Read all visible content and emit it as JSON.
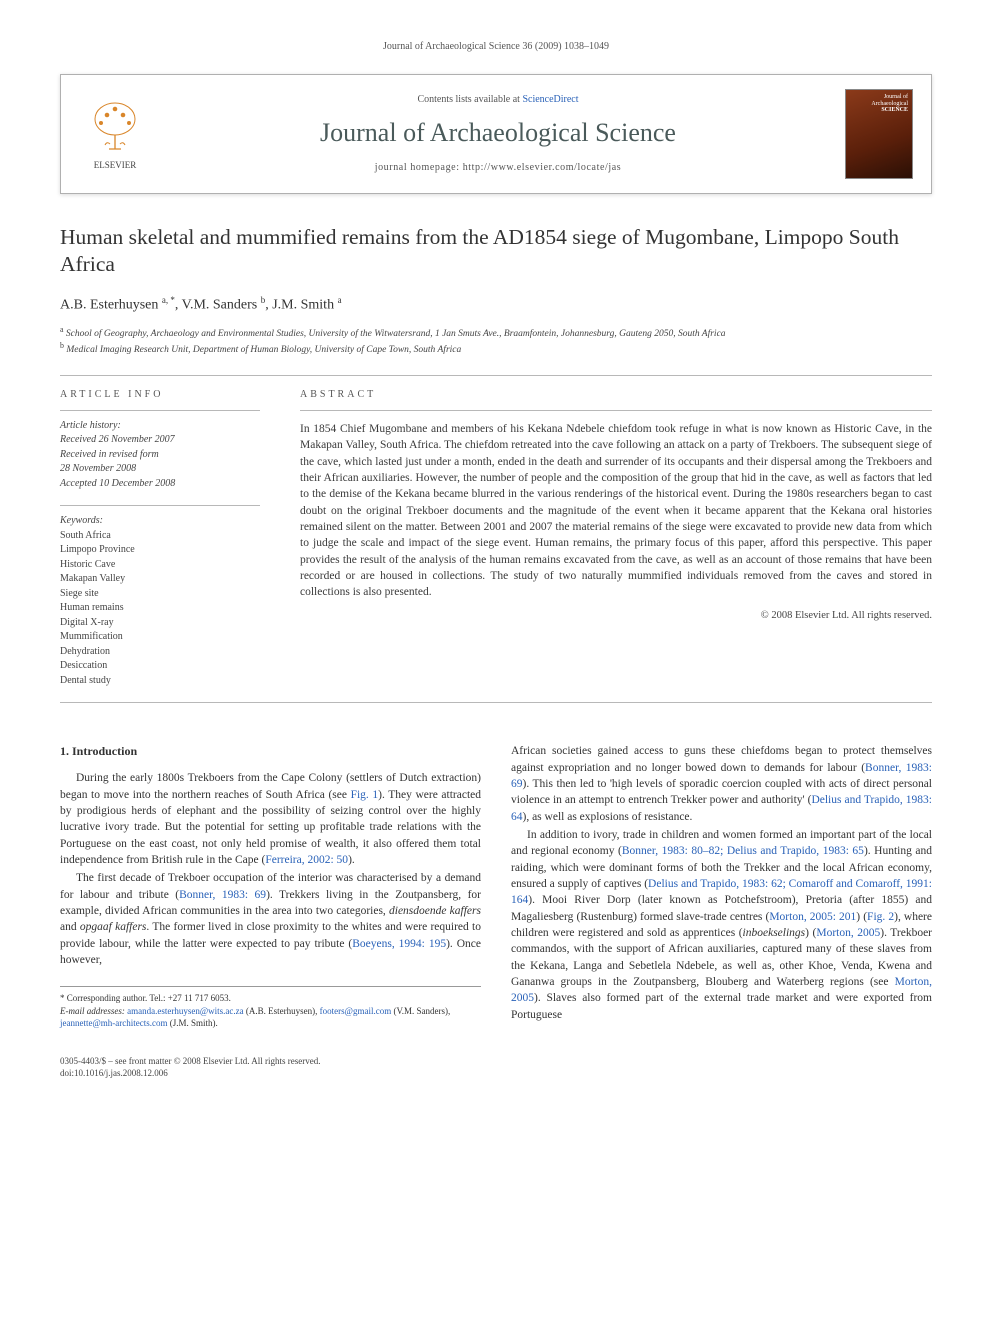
{
  "running_header": "Journal of Archaeological Science 36 (2009) 1038–1049",
  "banner": {
    "contents_prefix": "Contents lists available at ",
    "contents_link": "ScienceDirect",
    "journal_title": "Journal of Archaeological Science",
    "homepage_prefix": "journal homepage: ",
    "homepage_url": "http://www.elsevier.com/locate/jas",
    "publisher_name": "ELSEVIER",
    "cover_label_top": "Journal of",
    "cover_label_mid": "Archaeological",
    "cover_label_bottom": "SCIENCE"
  },
  "article": {
    "title": "Human skeletal and mummified remains from the AD1854 siege of Mugombane, Limpopo South Africa",
    "authors_html": "A.B. Esterhuysen <sup>a, *</sup>, V.M. Sanders <sup>b</sup>, J.M. Smith <sup>a</sup>",
    "affiliations": [
      "a School of Geography, Archaeology and Environmental Studies, University of the Witwatersrand, 1 Jan Smuts Ave., Braamfontein, Johannesburg, Gauteng 2050, South Africa",
      "b Medical Imaging Research Unit, Department of Human Biology, University of Cape Town, South Africa"
    ]
  },
  "labels": {
    "article_info": "ARTICLE INFO",
    "abstract": "ABSTRACT",
    "history_hdr": "Article history:",
    "keywords_hdr": "Keywords:"
  },
  "history": [
    "Received 26 November 2007",
    "Received in revised form",
    "28 November 2008",
    "Accepted 10 December 2008"
  ],
  "keywords": [
    "South Africa",
    "Limpopo Province",
    "Historic Cave",
    "Makapan Valley",
    "Siege site",
    "Human remains",
    "Digital X-ray",
    "Mummification",
    "Dehydration",
    "Desiccation",
    "Dental study"
  ],
  "abstract": "In 1854 Chief Mugombane and members of his Kekana Ndebele chiefdom took refuge in what is now known as Historic Cave, in the Makapan Valley, South Africa. The chiefdom retreated into the cave following an attack on a party of Trekboers. The subsequent siege of the cave, which lasted just under a month, ended in the death and surrender of its occupants and their dispersal among the Trekboers and their African auxiliaries. However, the number of people and the composition of the group that hid in the cave, as well as factors that led to the demise of the Kekana became blurred in the various renderings of the historical event. During the 1980s researchers began to cast doubt on the original Trekboer documents and the magnitude of the event when it became apparent that the Kekana oral histories remained silent on the matter. Between 2001 and 2007 the material remains of the siege were excavated to provide new data from which to judge the scale and impact of the siege event. Human remains, the primary focus of this paper, afford this perspective. This paper provides the result of the analysis of the human remains excavated from the cave, as well as an account of those remains that have been recorded or are housed in collections. The study of two naturally mummified individuals removed from the caves and stored in collections is also presented.",
  "copyright": "© 2008 Elsevier Ltd. All rights reserved.",
  "body": {
    "heading1": "1. Introduction",
    "col1": {
      "p1_a": "During the early 1800s Trekboers from the Cape Colony (settlers of Dutch extraction) began to move into the northern reaches of South Africa (see ",
      "p1_fig": "Fig. 1",
      "p1_b": "). They were attracted by prodigious herds of elephant and the possibility of seizing control over the highly lucrative ivory trade. But the potential for setting up profitable trade relations with the Portuguese on the east coast, not only held promise of wealth, it also offered them total independence from British rule in the Cape (",
      "p1_ref": "Ferreira, 2002: 50",
      "p1_c": ").",
      "p2_a": "The first decade of Trekboer occupation of the interior was characterised by a demand for labour and tribute (",
      "p2_ref1": "Bonner, 1983: 69",
      "p2_b": "). Trekkers living in the Zoutpansberg, for example, divided African communities in the area into two categories, ",
      "p2_it1": "diensdoende kaffers",
      "p2_c": " and ",
      "p2_it2": "opgaaf kaffers",
      "p2_d": ". The former lived in close proximity to the whites and were required to provide labour, while the latter were expected to pay tribute (",
      "p2_ref2": "Boeyens, 1994: 195",
      "p2_e": "). Once however,"
    },
    "col2": {
      "p1_a": "African societies gained access to guns these chiefdoms began to protect themselves against expropriation and no longer bowed down to demands for labour (",
      "p1_ref1": "Bonner, 1983: 69",
      "p1_b": "). This then led to 'high levels of sporadic coercion coupled with acts of direct personal violence in an attempt to entrench Trekker power and authority' (",
      "p1_ref2": "Delius and Trapido, 1983: 64",
      "p1_c": "), as well as explosions of resistance.",
      "p2_a": "In addition to ivory, trade in children and women formed an important part of the local and regional economy (",
      "p2_ref1": "Bonner, 1983: 80–82; Delius and Trapido, 1983: 65",
      "p2_b": "). Hunting and raiding, which were dominant forms of both the Trekker and the local African economy, ensured a supply of captives (",
      "p2_ref2": "Delius and Trapido, 1983: 62; Comaroff and Comaroff, 1991: 164",
      "p2_c": "). Mooi River Dorp (later known as Potchefstroom), Pretoria (after 1855) and Magaliesberg (Rustenburg) formed slave-trade centres (",
      "p2_ref3": "Morton, 2005: 201",
      "p2_d": ") (",
      "p2_fig": "Fig. 2",
      "p2_e": "), where children were registered and sold as apprentices (",
      "p2_it": "inboekselings",
      "p2_f": ") (",
      "p2_ref4": "Morton, 2005",
      "p2_g": "). Trekboer commandos, with the support of African auxiliaries, captured many of these slaves from the Kekana, Langa and Sebetlela Ndebele, as well as, other Khoe, Venda, Kwena and Gananwa groups in the Zoutpansberg, Blouberg and Waterberg regions (see ",
      "p2_ref5": "Morton, 2005",
      "p2_h": "). Slaves also formed part of the external trade market and were exported from Portuguese"
    }
  },
  "corresponding": {
    "label": "* Corresponding author. Tel.: +27 11 717 6053.",
    "email_label": "E-mail addresses:",
    "e1": "amanda.esterhuysen@wits.ac.za",
    "n1": " (A.B. Esterhuysen), ",
    "e2": "footers@gmail.com",
    "n2": " (V.M. Sanders), ",
    "e3": "jeannette@mh-architects.com",
    "n3": " (J.M. Smith)."
  },
  "footer": {
    "line1": "0305-4403/$ – see front matter © 2008 Elsevier Ltd. All rights reserved.",
    "line2": "doi:10.1016/j.jas.2008.12.006"
  },
  "colors": {
    "link": "#2a62b8",
    "text": "#333333",
    "rule": "#b8b8b8",
    "journal_title": "#4a5a5a",
    "cover_grad_start": "#8b3a1a",
    "cover_grad_end": "#2a0f05"
  }
}
